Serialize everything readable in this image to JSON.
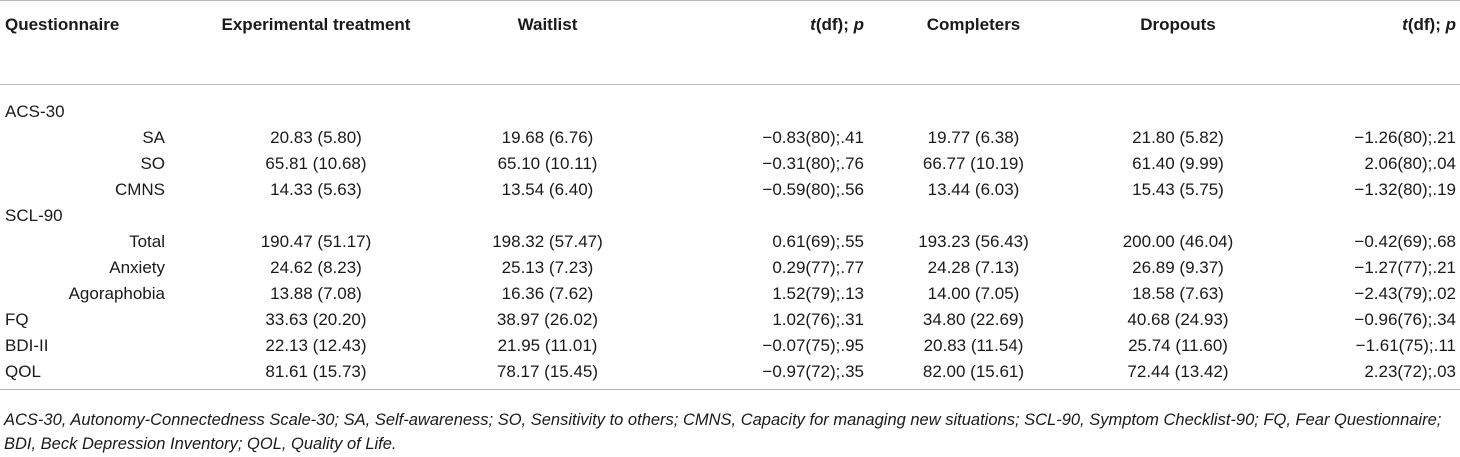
{
  "table": {
    "headers": {
      "questionnaire": "Questionnaire",
      "experimental": "Experimental treatment",
      "waitlist": "Waitlist",
      "t1_t": "t",
      "t1_rest": "(df); ",
      "t1_p": "p",
      "completers": "Completers",
      "dropouts": "Dropouts",
      "t2_t": "t",
      "t2_rest": "(df); ",
      "t2_p": "p"
    },
    "rows": [
      {
        "label": "ACS-30",
        "type": "group",
        "cells": [
          "",
          "",
          "",
          "",
          "",
          ""
        ]
      },
      {
        "label": "SA",
        "type": "sub",
        "cells": [
          "20.83 (5.80)",
          "19.68 (6.76)",
          "−0.83(80);.41",
          "19.77 (6.38)",
          "21.80 (5.82)",
          "−1.26(80);.21"
        ]
      },
      {
        "label": "SO",
        "type": "sub",
        "cells": [
          "65.81 (10.68)",
          "65.10 (10.11)",
          "−0.31(80);.76",
          "66.77 (10.19)",
          "61.40 (9.99)",
          "2.06(80);.04"
        ]
      },
      {
        "label": "CMNS",
        "type": "sub",
        "cells": [
          "14.33 (5.63)",
          "13.54 (6.40)",
          "−0.59(80);.56",
          "13.44 (6.03)",
          "15.43 (5.75)",
          "−1.32(80);.19"
        ]
      },
      {
        "label": "SCL-90",
        "type": "group",
        "cells": [
          "",
          "",
          "",
          "",
          "",
          ""
        ]
      },
      {
        "label": "Total",
        "type": "sub",
        "cells": [
          "190.47 (51.17)",
          "198.32 (57.47)",
          "0.61(69);.55",
          "193.23 (56.43)",
          "200.00 (46.04)",
          "−0.42(69);.68"
        ]
      },
      {
        "label": "Anxiety",
        "type": "sub",
        "cells": [
          "24.62 (8.23)",
          "25.13 (7.23)",
          "0.29(77);.77",
          "24.28 (7.13)",
          "26.89 (9.37)",
          "−1.27(77);.21"
        ]
      },
      {
        "label": "Agoraphobia",
        "type": "sub",
        "cells": [
          "13.88 (7.08)",
          "16.36 (7.62)",
          "1.52(79);.13",
          "14.00 (7.05)",
          "18.58 (7.63)",
          "−2.43(79);.02"
        ]
      },
      {
        "label": "FQ",
        "type": "top",
        "cells": [
          "33.63 (20.20)",
          "38.97 (26.02)",
          "1.02(76);.31",
          "34.80 (22.69)",
          "40.68 (24.93)",
          "−0.96(76);.34"
        ]
      },
      {
        "label": "BDI-II",
        "type": "top",
        "cells": [
          "22.13 (12.43)",
          "21.95 (11.01)",
          "−0.07(75);.95",
          "20.83 (11.54)",
          "25.74 (11.60)",
          "−1.61(75);.11"
        ]
      },
      {
        "label": "QOL",
        "type": "top",
        "cells": [
          "81.61 (15.73)",
          "78.17 (15.45)",
          "−0.97(72);.35",
          "82.00 (15.61)",
          "72.44 (13.42)",
          "2.23(72);.03"
        ]
      }
    ]
  },
  "footnote": "ACS-30, Autonomy-Connectedness Scale-30; SA, Self-awareness; SO, Sensitivity to others; CMNS, Capacity for managing new situations; SCL-90, Symptom Checklist-90; FQ, Fear Questionnaire; BDI, Beck Depression Inventory; QOL, Quality of Life."
}
